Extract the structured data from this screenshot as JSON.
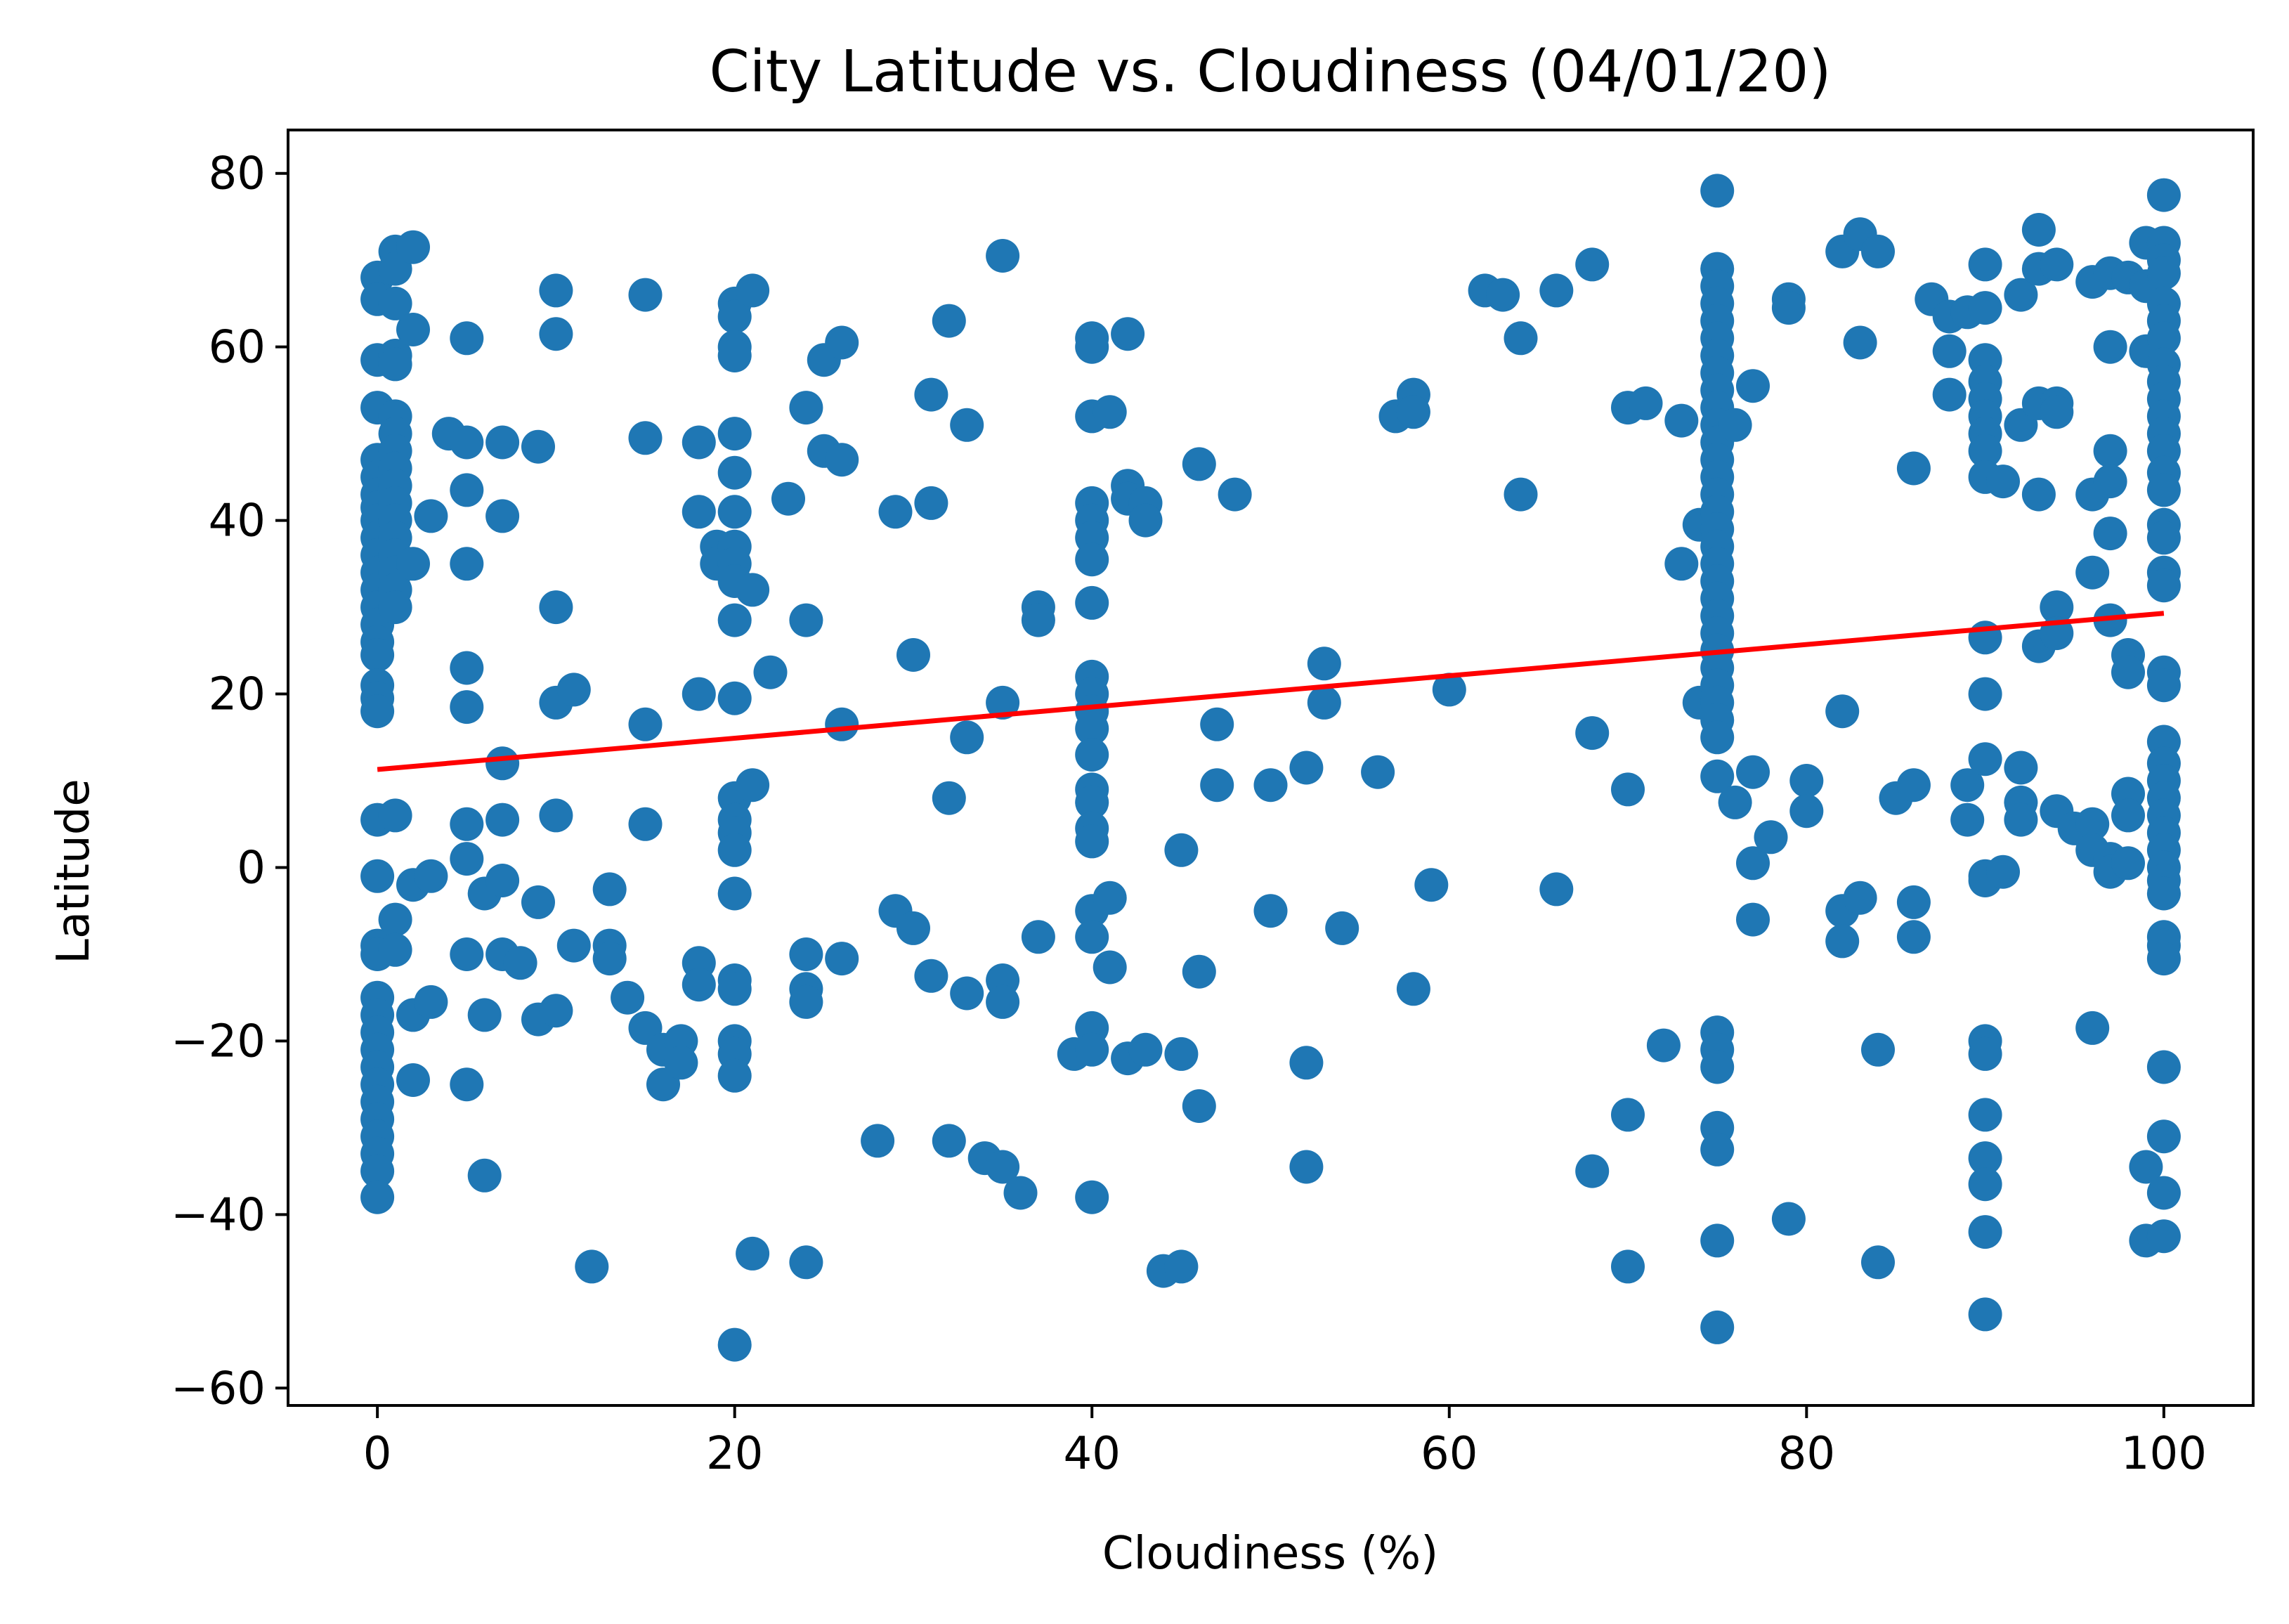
{
  "chart_data": {
    "type": "scatter",
    "title": "City Latitude vs. Cloudiness (04/01/20)",
    "xlabel": "Cloudiness (%)",
    "ylabel": "Latitude",
    "xlim": [
      -5,
      105
    ],
    "ylim": [
      -62,
      85
    ],
    "xticks": [
      0,
      20,
      40,
      60,
      80,
      100
    ],
    "yticks": [
      -60,
      -40,
      -20,
      0,
      20,
      40,
      60,
      80
    ],
    "xtick_labels": [
      "0",
      "20",
      "40",
      "60",
      "80",
      "100"
    ],
    "ytick_labels": [
      "−60",
      "−40",
      "−20",
      "0",
      "20",
      "40",
      "60",
      "80"
    ],
    "grid": false,
    "colors": {
      "points": "#1f77b4",
      "regression": "#ff0000"
    },
    "regression_line": {
      "x": [
        0,
        100
      ],
      "y": [
        11.3,
        29.3
      ]
    },
    "points": [
      [
        0,
        68
      ],
      [
        0,
        65.5
      ],
      [
        0,
        58.5
      ],
      [
        0,
        53
      ],
      [
        0,
        47
      ],
      [
        0,
        45
      ],
      [
        0,
        43
      ],
      [
        0,
        41.5
      ],
      [
        0,
        40
      ],
      [
        0,
        38
      ],
      [
        0,
        36
      ],
      [
        0,
        34
      ],
      [
        0,
        32
      ],
      [
        0,
        30
      ],
      [
        0,
        28
      ],
      [
        0,
        26
      ],
      [
        0,
        24.5
      ],
      [
        0,
        21
      ],
      [
        0,
        19.5
      ],
      [
        0,
        18
      ],
      [
        0,
        5.5
      ],
      [
        0,
        -1
      ],
      [
        0,
        -9
      ],
      [
        0,
        -10
      ],
      [
        0,
        -15
      ],
      [
        0,
        -17
      ],
      [
        0,
        -19
      ],
      [
        0,
        -21
      ],
      [
        0,
        -23
      ],
      [
        0,
        -25
      ],
      [
        0,
        -27
      ],
      [
        0,
        -29
      ],
      [
        0,
        -31
      ],
      [
        0,
        -33
      ],
      [
        0,
        -35
      ],
      [
        0,
        -38
      ],
      [
        1,
        71
      ],
      [
        1,
        69
      ],
      [
        1,
        65
      ],
      [
        1,
        59
      ],
      [
        1,
        58
      ],
      [
        1,
        52
      ],
      [
        1,
        50
      ],
      [
        1,
        48
      ],
      [
        1,
        46
      ],
      [
        1,
        44
      ],
      [
        1,
        42
      ],
      [
        1,
        40
      ],
      [
        1,
        38
      ],
      [
        1,
        36
      ],
      [
        1,
        34
      ],
      [
        1,
        32
      ],
      [
        1,
        30
      ],
      [
        1,
        6
      ],
      [
        1,
        -6
      ],
      [
        1,
        -9.5
      ],
      [
        2,
        71.5
      ],
      [
        2,
        62
      ],
      [
        2,
        35
      ],
      [
        2,
        -2
      ],
      [
        2,
        -17
      ],
      [
        2,
        -24.5
      ],
      [
        3,
        40.5
      ],
      [
        3,
        -1
      ],
      [
        3,
        -15.5
      ],
      [
        4,
        50
      ],
      [
        5,
        49
      ],
      [
        5,
        61
      ],
      [
        5,
        43.5
      ],
      [
        5,
        35
      ],
      [
        5,
        23
      ],
      [
        5,
        18.5
      ],
      [
        5,
        5
      ],
      [
        5,
        1
      ],
      [
        5,
        -10
      ],
      [
        5,
        -25
      ],
      [
        6,
        -17
      ],
      [
        6,
        -3
      ],
      [
        6,
        -35.5
      ],
      [
        7,
        49
      ],
      [
        7,
        40.5
      ],
      [
        7,
        12
      ],
      [
        7,
        5.5
      ],
      [
        7,
        -1.5
      ],
      [
        7,
        -10
      ],
      [
        8,
        -11
      ],
      [
        9,
        48.5
      ],
      [
        9,
        -4
      ],
      [
        9,
        -17.5
      ],
      [
        10,
        66.5
      ],
      [
        10,
        61.5
      ],
      [
        10,
        30
      ],
      [
        10,
        19
      ],
      [
        10,
        6
      ],
      [
        10,
        -16.5
      ],
      [
        11,
        20.5
      ],
      [
        11,
        -9
      ],
      [
        12,
        -46
      ],
      [
        13,
        -9
      ],
      [
        13,
        -10.5
      ],
      [
        13,
        -2.5
      ],
      [
        14,
        -15
      ],
      [
        15,
        66
      ],
      [
        15,
        49.5
      ],
      [
        15,
        16.5
      ],
      [
        15,
        5
      ],
      [
        15,
        -18.5
      ],
      [
        16,
        -21
      ],
      [
        16,
        -25
      ],
      [
        17,
        -20
      ],
      [
        17,
        -22.5
      ],
      [
        18,
        49
      ],
      [
        18,
        41
      ],
      [
        18,
        20
      ],
      [
        18,
        -11
      ],
      [
        18,
        -13.5
      ],
      [
        19,
        37
      ],
      [
        19,
        35
      ],
      [
        20,
        65
      ],
      [
        20,
        63.5
      ],
      [
        20,
        60
      ],
      [
        20,
        59
      ],
      [
        20,
        50
      ],
      [
        20,
        45.5
      ],
      [
        20,
        41
      ],
      [
        20,
        37
      ],
      [
        20,
        35
      ],
      [
        20,
        33
      ],
      [
        20,
        28.5
      ],
      [
        20,
        19.5
      ],
      [
        20,
        8
      ],
      [
        20,
        5.5
      ],
      [
        20,
        4
      ],
      [
        20,
        2
      ],
      [
        20,
        -3
      ],
      [
        20,
        -13
      ],
      [
        20,
        -14
      ],
      [
        20,
        -20
      ],
      [
        20,
        -21.5
      ],
      [
        20,
        -24
      ],
      [
        20,
        -55
      ],
      [
        21,
        66.5
      ],
      [
        21,
        32
      ],
      [
        21,
        9.5
      ],
      [
        21,
        -44.5
      ],
      [
        22,
        22.5
      ],
      [
        23,
        42.5
      ],
      [
        24,
        53
      ],
      [
        24,
        28.5
      ],
      [
        24,
        -10
      ],
      [
        24,
        -14
      ],
      [
        24,
        -15.5
      ],
      [
        24,
        -45.5
      ],
      [
        25,
        58.5
      ],
      [
        25,
        48
      ],
      [
        26,
        60.5
      ],
      [
        26,
        47
      ],
      [
        26,
        16.5
      ],
      [
        26,
        -10.5
      ],
      [
        28,
        -31.5
      ],
      [
        29,
        41
      ],
      [
        29,
        -5
      ],
      [
        30,
        24.5
      ],
      [
        30,
        -7
      ],
      [
        31,
        54.5
      ],
      [
        31,
        42
      ],
      [
        31,
        -12.5
      ],
      [
        32,
        63
      ],
      [
        32,
        8
      ],
      [
        32,
        -31.5
      ],
      [
        33,
        51
      ],
      [
        33,
        15
      ],
      [
        33,
        -14.5
      ],
      [
        34,
        -33.5
      ],
      [
        35,
        70.5
      ],
      [
        35,
        19
      ],
      [
        35,
        -13
      ],
      [
        35,
        -15.5
      ],
      [
        35,
        -34.5
      ],
      [
        36,
        -37.5
      ],
      [
        37,
        30
      ],
      [
        37,
        28.5
      ],
      [
        37,
        -8
      ],
      [
        39,
        -21.5
      ],
      [
        40,
        61
      ],
      [
        40,
        60
      ],
      [
        40,
        52
      ],
      [
        40,
        42
      ],
      [
        40,
        40
      ],
      [
        40,
        38
      ],
      [
        40,
        35.5
      ],
      [
        40,
        30.5
      ],
      [
        40,
        22
      ],
      [
        40,
        20
      ],
      [
        40,
        18
      ],
      [
        40,
        16
      ],
      [
        40,
        13
      ],
      [
        40,
        9
      ],
      [
        40,
        7.5
      ],
      [
        40,
        4.5
      ],
      [
        40,
        3
      ],
      [
        40,
        -5
      ],
      [
        40,
        -8
      ],
      [
        40,
        -18.5
      ],
      [
        40,
        -21
      ],
      [
        40,
        -38
      ],
      [
        41,
        52.5
      ],
      [
        41,
        -3.5
      ],
      [
        41,
        -11.5
      ],
      [
        42,
        61.5
      ],
      [
        42,
        44
      ],
      [
        42,
        42.5
      ],
      [
        42,
        -22
      ],
      [
        43,
        42
      ],
      [
        43,
        40
      ],
      [
        43,
        -21
      ],
      [
        44,
        -46.5
      ],
      [
        45,
        2
      ],
      [
        45,
        -21.5
      ],
      [
        45,
        -46
      ],
      [
        46,
        46.5
      ],
      [
        46,
        -12
      ],
      [
        46,
        -27.5
      ],
      [
        47,
        16.5
      ],
      [
        47,
        9.5
      ],
      [
        48,
        43
      ],
      [
        50,
        9.5
      ],
      [
        50,
        -5
      ],
      [
        52,
        11.5
      ],
      [
        52,
        -22.5
      ],
      [
        52,
        -34.5
      ],
      [
        53,
        23.5
      ],
      [
        53,
        19
      ],
      [
        54,
        -7
      ],
      [
        56,
        11
      ],
      [
        57,
        52
      ],
      [
        58,
        54.5
      ],
      [
        58,
        52.5
      ],
      [
        58,
        -14
      ],
      [
        59,
        -2
      ],
      [
        60,
        20.5
      ],
      [
        62,
        66.5
      ],
      [
        63,
        66
      ],
      [
        64,
        61
      ],
      [
        64,
        43
      ],
      [
        66,
        66.5
      ],
      [
        66,
        -2.5
      ],
      [
        68,
        69.5
      ],
      [
        68,
        15.5
      ],
      [
        68,
        -35
      ],
      [
        70,
        53
      ],
      [
        70,
        9
      ],
      [
        70,
        -28.5
      ],
      [
        70,
        -46
      ],
      [
        71,
        53.5
      ],
      [
        72,
        -20.5
      ],
      [
        73,
        51.5
      ],
      [
        73,
        35
      ],
      [
        74,
        39.5
      ],
      [
        74,
        19
      ],
      [
        75,
        78
      ],
      [
        75,
        69
      ],
      [
        75,
        67
      ],
      [
        75,
        65
      ],
      [
        75,
        63
      ],
      [
        75,
        61
      ],
      [
        75,
        59
      ],
      [
        75,
        57
      ],
      [
        75,
        55
      ],
      [
        75,
        53
      ],
      [
        75,
        51
      ],
      [
        75,
        49
      ],
      [
        75,
        47
      ],
      [
        75,
        45
      ],
      [
        75,
        43
      ],
      [
        75,
        41
      ],
      [
        75,
        39
      ],
      [
        75,
        37
      ],
      [
        75,
        35
      ],
      [
        75,
        33
      ],
      [
        75,
        31
      ],
      [
        75,
        29
      ],
      [
        75,
        27
      ],
      [
        75,
        25
      ],
      [
        75,
        23
      ],
      [
        75,
        21
      ],
      [
        75,
        19
      ],
      [
        75,
        17
      ],
      [
        75,
        15
      ],
      [
        75,
        10.5
      ],
      [
        75,
        -19
      ],
      [
        75,
        -21
      ],
      [
        75,
        -23
      ],
      [
        75,
        -30
      ],
      [
        75,
        -32.5
      ],
      [
        75,
        -43
      ],
      [
        75,
        -53
      ],
      [
        76,
        51
      ],
      [
        76,
        7.5
      ],
      [
        77,
        55.5
      ],
      [
        77,
        11
      ],
      [
        77,
        0.5
      ],
      [
        77,
        -6
      ],
      [
        78,
        3.5
      ],
      [
        79,
        65.5
      ],
      [
        79,
        64.5
      ],
      [
        79,
        -40.5
      ],
      [
        80,
        10
      ],
      [
        80,
        6.5
      ],
      [
        82,
        71
      ],
      [
        82,
        18
      ],
      [
        82,
        -5
      ],
      [
        82,
        -8.5
      ],
      [
        83,
        73
      ],
      [
        83,
        60.5
      ],
      [
        83,
        -3.5
      ],
      [
        84,
        71
      ],
      [
        84,
        -21
      ],
      [
        84,
        -45.5
      ],
      [
        85,
        8
      ],
      [
        86,
        46
      ],
      [
        86,
        9.5
      ],
      [
        86,
        -4
      ],
      [
        86,
        -8
      ],
      [
        87,
        65.5
      ],
      [
        88,
        63.5
      ],
      [
        88,
        59.5
      ],
      [
        88,
        54.5
      ],
      [
        89,
        64
      ],
      [
        89,
        9.5
      ],
      [
        89,
        5.5
      ],
      [
        90,
        69.5
      ],
      [
        90,
        64.5
      ],
      [
        90,
        58.5
      ],
      [
        90,
        56
      ],
      [
        90,
        54
      ],
      [
        90,
        52
      ],
      [
        90,
        50
      ],
      [
        90,
        48
      ],
      [
        90,
        45
      ],
      [
        90,
        26.5
      ],
      [
        90,
        20
      ],
      [
        90,
        12.5
      ],
      [
        90,
        -1
      ],
      [
        90,
        -1.5
      ],
      [
        90,
        -20
      ],
      [
        90,
        -21.5
      ],
      [
        90,
        -28.5
      ],
      [
        90,
        -33.5
      ],
      [
        90,
        -36.5
      ],
      [
        90,
        -42
      ],
      [
        90,
        -51.5
      ],
      [
        91,
        44.5
      ],
      [
        91,
        -0.5
      ],
      [
        92,
        66
      ],
      [
        92,
        51
      ],
      [
        92,
        11.5
      ],
      [
        92,
        7.5
      ],
      [
        92,
        5.5
      ],
      [
        93,
        73.5
      ],
      [
        93,
        69
      ],
      [
        93,
        53.5
      ],
      [
        93,
        43
      ],
      [
        93,
        25.5
      ],
      [
        94,
        69.5
      ],
      [
        94,
        53.5
      ],
      [
        94,
        52.5
      ],
      [
        94,
        30
      ],
      [
        94,
        27
      ],
      [
        94,
        6.5
      ],
      [
        95,
        4.5
      ],
      [
        96,
        67.5
      ],
      [
        96,
        43
      ],
      [
        96,
        34
      ],
      [
        96,
        5
      ],
      [
        96,
        2
      ],
      [
        96,
        -18.5
      ],
      [
        97,
        68.5
      ],
      [
        97,
        60
      ],
      [
        97,
        48
      ],
      [
        97,
        44.5
      ],
      [
        97,
        38.5
      ],
      [
        97,
        28.5
      ],
      [
        97,
        1
      ],
      [
        97,
        -0.5
      ],
      [
        98,
        68
      ],
      [
        98,
        24.5
      ],
      [
        98,
        22.5
      ],
      [
        98,
        8.5
      ],
      [
        98,
        6
      ],
      [
        98,
        0.5
      ],
      [
        99,
        72
      ],
      [
        99,
        67
      ],
      [
        99,
        59.5
      ],
      [
        99,
        -34.5
      ],
      [
        99,
        -43
      ],
      [
        100,
        77.5
      ],
      [
        100,
        72
      ],
      [
        100,
        70
      ],
      [
        100,
        68.5
      ],
      [
        100,
        65
      ],
      [
        100,
        63
      ],
      [
        100,
        61
      ],
      [
        100,
        58
      ],
      [
        100,
        56
      ],
      [
        100,
        54
      ],
      [
        100,
        52
      ],
      [
        100,
        50
      ],
      [
        100,
        48
      ],
      [
        100,
        45.5
      ],
      [
        100,
        43.5
      ],
      [
        100,
        39.5
      ],
      [
        100,
        38
      ],
      [
        100,
        34
      ],
      [
        100,
        32.5
      ],
      [
        100,
        22.5
      ],
      [
        100,
        21
      ],
      [
        100,
        14.5
      ],
      [
        100,
        12
      ],
      [
        100,
        10
      ],
      [
        100,
        8
      ],
      [
        100,
        6
      ],
      [
        100,
        4
      ],
      [
        100,
        2
      ],
      [
        100,
        0
      ],
      [
        100,
        -1.5
      ],
      [
        100,
        -3
      ],
      [
        100,
        -8
      ],
      [
        100,
        -9
      ],
      [
        100,
        -10.5
      ],
      [
        100,
        -23
      ],
      [
        100,
        -31
      ],
      [
        100,
        -37.5
      ],
      [
        100,
        -42.5
      ]
    ]
  }
}
